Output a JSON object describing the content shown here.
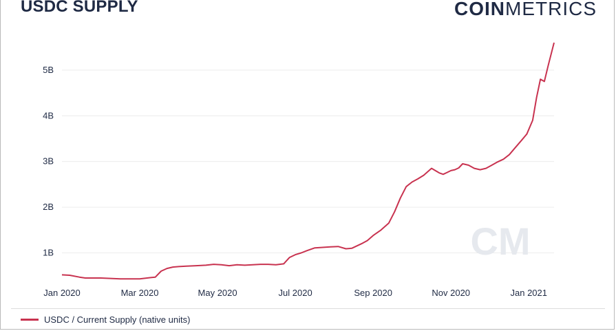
{
  "header": {
    "title": "USDC SUPPLY",
    "brand_bold": "COIN",
    "brand_light": "METRICS"
  },
  "colors": {
    "series": "#c8324f",
    "text": "#1f2a44",
    "grid": "#ececec",
    "watermark": "#e6e9ee"
  },
  "watermark": "CM",
  "chart_data": {
    "type": "line",
    "title": "USDC SUPPLY",
    "xlabel": "",
    "ylabel": "",
    "grid": true,
    "legend_position": "bottom-left",
    "ylim": [
      0.42,
      5.6
    ],
    "y_ticks": [
      1,
      2,
      3,
      4,
      5
    ],
    "y_tick_labels": [
      "1B",
      "2B",
      "3B",
      "4B",
      "5B"
    ],
    "x_ticks": [
      0,
      2,
      4,
      6,
      8,
      10,
      12
    ],
    "x_tick_labels": [
      "Jan 2020",
      "Mar 2020",
      "May 2020",
      "Jul 2020",
      "Sep 2020",
      "Nov 2020",
      "Jan 2021"
    ],
    "series": [
      {
        "name": "USDC / Current Supply (native units)",
        "x": [
          0,
          0.2,
          0.45,
          0.6,
          1.0,
          1.3,
          1.5,
          1.8,
          2.0,
          2.3,
          2.4,
          2.55,
          2.7,
          2.85,
          3.0,
          3.2,
          3.45,
          3.7,
          3.9,
          4.1,
          4.3,
          4.5,
          4.7,
          4.9,
          5.1,
          5.3,
          5.5,
          5.7,
          5.85,
          6.0,
          6.15,
          6.3,
          6.5,
          6.7,
          6.9,
          7.1,
          7.3,
          7.45,
          7.55,
          7.7,
          7.85,
          8.0,
          8.2,
          8.4,
          8.55,
          8.7,
          8.85,
          9.0,
          9.15,
          9.3,
          9.5,
          9.7,
          9.8,
          9.9,
          10.0,
          10.1,
          10.2,
          10.3,
          10.45,
          10.6,
          10.75,
          10.9,
          11.05,
          11.2,
          11.35,
          11.5,
          11.65,
          11.8,
          11.95,
          12.1,
          12.2,
          12.3,
          12.4,
          12.5,
          12.65
        ],
        "values": [
          0.52,
          0.51,
          0.47,
          0.45,
          0.45,
          0.44,
          0.43,
          0.43,
          0.43,
          0.46,
          0.47,
          0.6,
          0.66,
          0.69,
          0.7,
          0.71,
          0.72,
          0.73,
          0.75,
          0.74,
          0.72,
          0.74,
          0.73,
          0.74,
          0.75,
          0.75,
          0.74,
          0.76,
          0.9,
          0.96,
          1.0,
          1.05,
          1.11,
          1.12,
          1.13,
          1.14,
          1.09,
          1.1,
          1.14,
          1.2,
          1.27,
          1.38,
          1.5,
          1.65,
          1.9,
          2.2,
          2.45,
          2.55,
          2.62,
          2.7,
          2.85,
          2.75,
          2.72,
          2.76,
          2.8,
          2.82,
          2.86,
          2.95,
          2.92,
          2.85,
          2.82,
          2.85,
          2.92,
          2.99,
          3.05,
          3.15,
          3.3,
          3.45,
          3.6,
          3.9,
          4.4,
          4.8,
          4.75,
          5.1,
          5.6
        ]
      }
    ]
  },
  "legend": {
    "items": [
      {
        "label": "USDC / Current Supply (native units)"
      }
    ]
  }
}
